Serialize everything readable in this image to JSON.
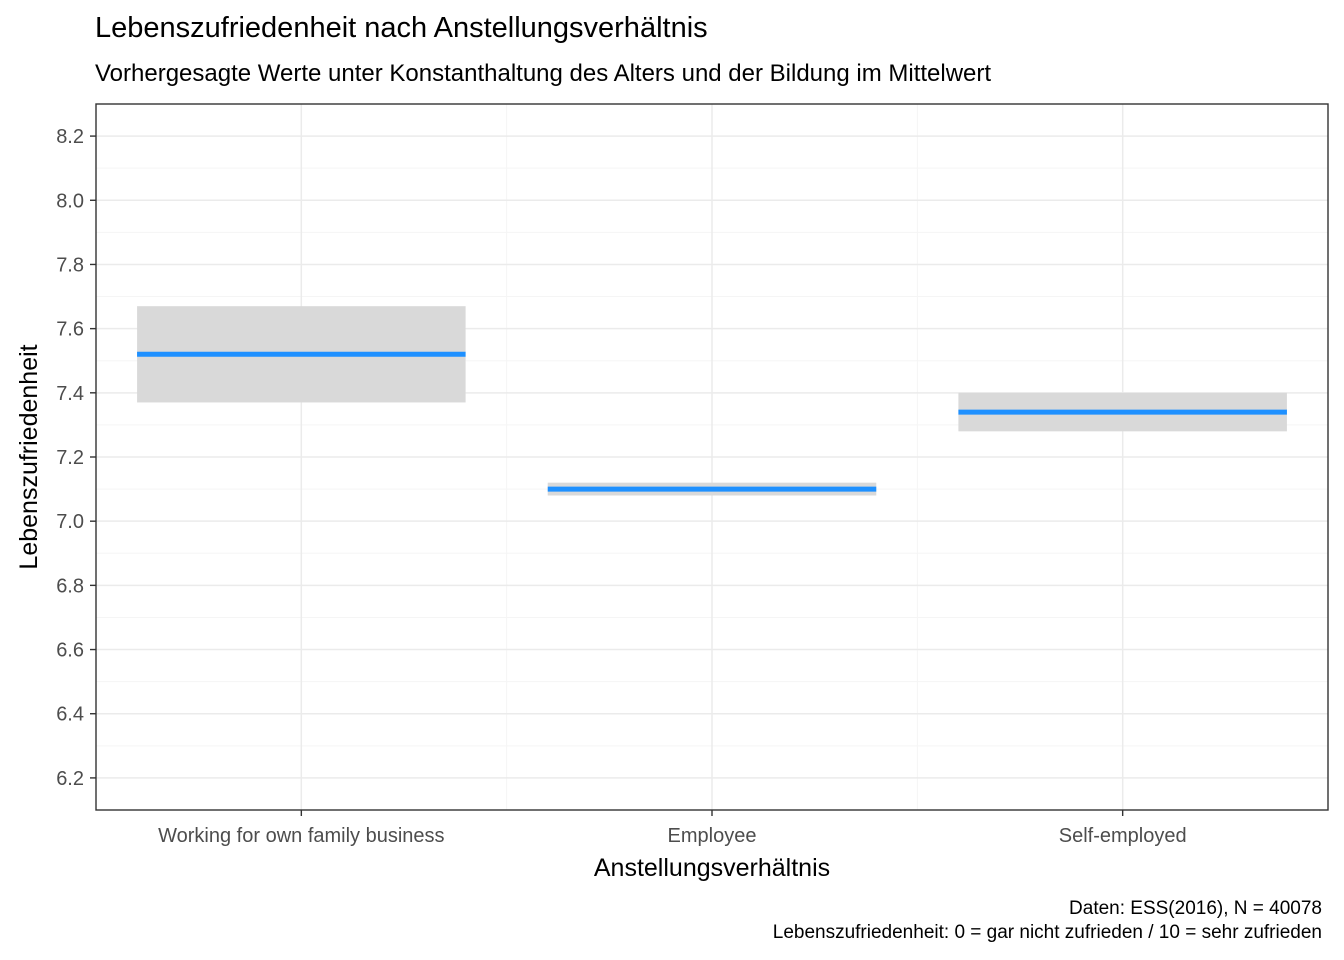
{
  "chart_data": {
    "type": "crossbar",
    "title": "Lebenszufriedenheit nach Anstellungsverhältnis",
    "subtitle": "Vorhergesagte Werte unter Konstanthaltung des Alters und der Bildung im Mittelwert",
    "xlabel": "Anstellungsverhältnis",
    "ylabel": "Lebenszufriedenheit",
    "categories": [
      "Working for own family business",
      "Employee",
      "Self-employed"
    ],
    "values": [
      7.52,
      7.1,
      7.34
    ],
    "lower": [
      7.37,
      7.08,
      7.28
    ],
    "upper": [
      7.67,
      7.12,
      7.4
    ],
    "ylim": [
      6.1,
      8.3
    ],
    "yticks": [
      6.2,
      6.4,
      6.6,
      6.8,
      7.0,
      7.2,
      7.4,
      7.6,
      7.8,
      8.0,
      8.2
    ],
    "ytick_labels": [
      "6.2",
      "6.4",
      "6.6",
      "6.8",
      "7.0",
      "7.2",
      "7.4",
      "7.6",
      "7.8",
      "8.0",
      "8.2"
    ],
    "grid": true,
    "colors": {
      "line": "#1E90FF",
      "band": "#D9D9D9",
      "grid_major": "#EBEBEB",
      "grid_minor": "#F5F5F5",
      "border": "#333333"
    },
    "caption": [
      "Daten: ESS(2016), N = 40078",
      "Lebenszufriedenheit: 0 = gar nicht zufrieden / 10 = sehr zufrieden"
    ]
  }
}
